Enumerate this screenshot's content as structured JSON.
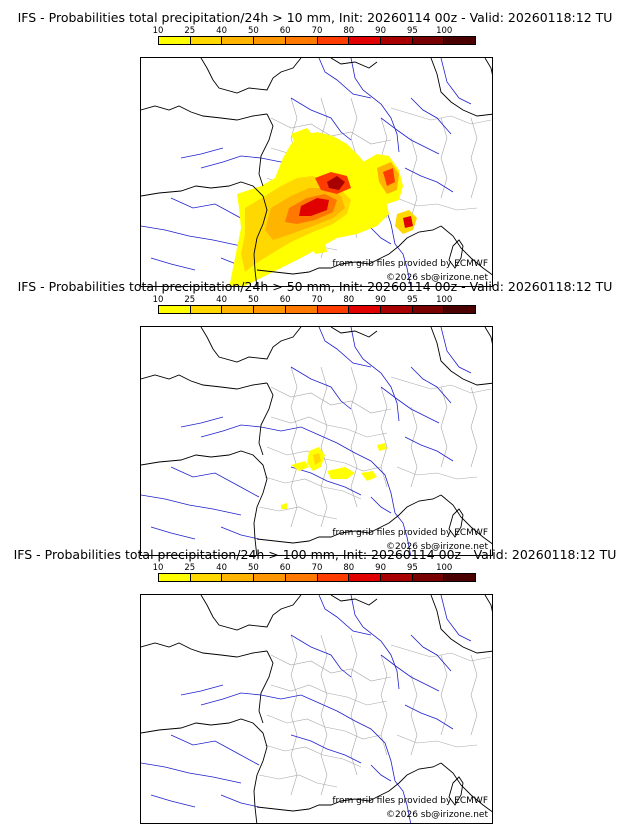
{
  "panels": [
    {
      "title": "IFS - Probabilities total precipitation/24h > 10 mm, Init: 20260114 00z - Valid: 20260118:12 TU",
      "credit_source": "from grib files provided by ECMWF",
      "credit_copyright": "©2026 sb@irizone.net"
    },
    {
      "title": "IFS - Probabilities total precipitation/24h > 50 mm, Init: 20260114 00z - Valid: 20260118:12 TU",
      "credit_source": "from grib files provided by ECMWF",
      "credit_copyright": "©2026 sb@irizone.net"
    },
    {
      "title": "IFS - Probabilities total precipitation/24h > 100 mm, Init: 20260114 00z - Valid: 20260118:12 TU",
      "credit_source": "from grib files provided by ECMWF",
      "credit_copyright": "©2026 sb@irizone.net"
    }
  ],
  "scale": {
    "ticks": [
      "10",
      "25",
      "40",
      "50",
      "60",
      "70",
      "80",
      "90",
      "95",
      "100"
    ],
    "colors": [
      "#ffff00",
      "#ffd800",
      "#ffb400",
      "#ff9600",
      "#ff7800",
      "#ff3c00",
      "#e00000",
      "#a80000",
      "#780000",
      "#4a0000"
    ]
  },
  "map_colors": {
    "coast": "#000000",
    "rivers": "#2020d0",
    "admin_borders": "#a8a8a8"
  }
}
